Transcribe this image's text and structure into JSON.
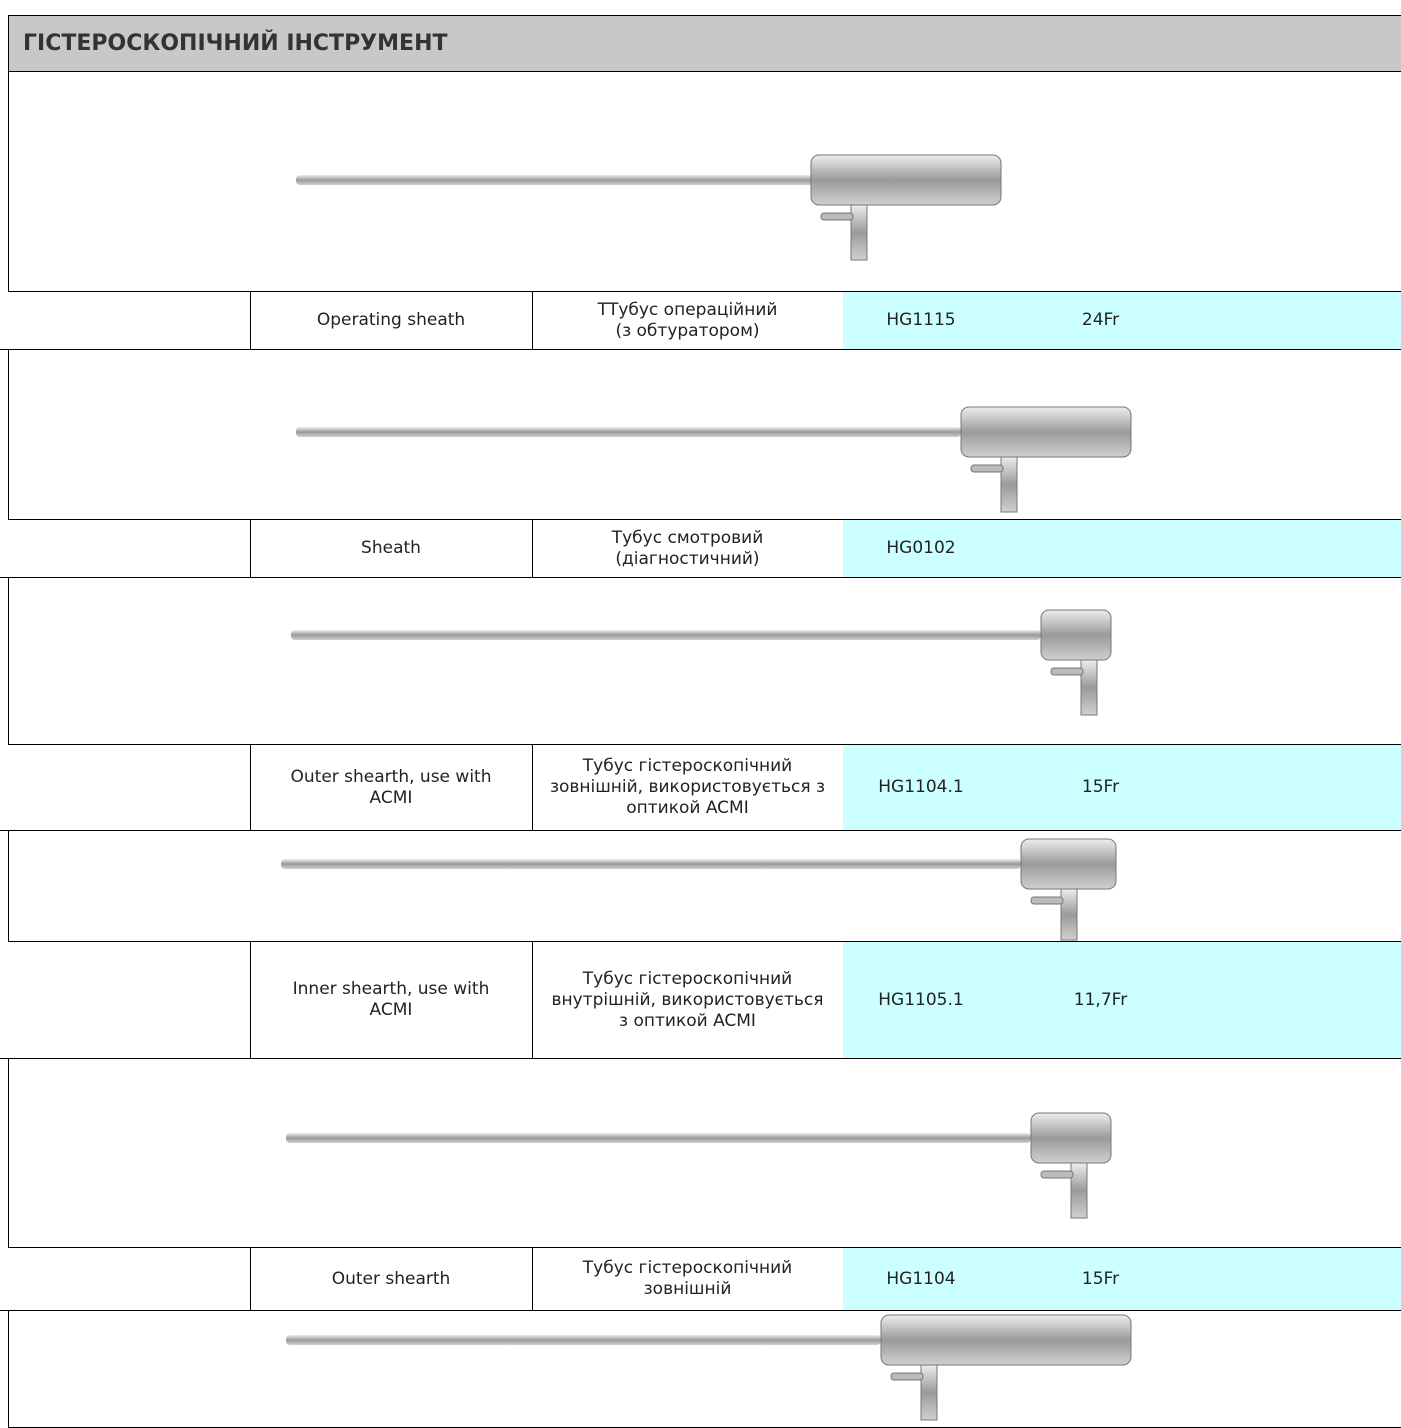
{
  "header": {
    "title": "ГІСТЕРОСКОПІЧНИЙ ІНСТРУМЕНТ"
  },
  "rows": [
    {
      "name_en": [
        "Operating sheath"
      ],
      "name_uk": [
        "ТТубус операційний",
        "(з обтуратором)"
      ],
      "code": "HG1115",
      "size": "24Fr"
    },
    {
      "name_en": [
        "Sheath"
      ],
      "name_uk": [
        "Тубус смотровий",
        "(діагностичний)"
      ],
      "code": "HG0102"
    },
    {
      "name_en": [
        "Outer shearth, use with",
        "ACMI"
      ],
      "name_uk": [
        "Тубус гістероскопічний",
        "зовнішній, використовується з",
        "оптикой ACMI"
      ],
      "code": "HG1104.1",
      "size": "15Fr"
    },
    {
      "name_en": [
        "Inner shearth, use with",
        "ACMI"
      ],
      "name_uk": [
        "Тубус гістероскопічний",
        "внутрішній, використовується",
        "з оптикой ACMI"
      ],
      "code": "HG1105.1",
      "size": "11,7Fr"
    },
    {
      "name_en": [
        "Outer shearth"
      ],
      "name_uk": [
        "Тубус гістероскопічний",
        "зовнішній"
      ],
      "code": "HG1104",
      "size": "15Fr"
    }
  ]
}
